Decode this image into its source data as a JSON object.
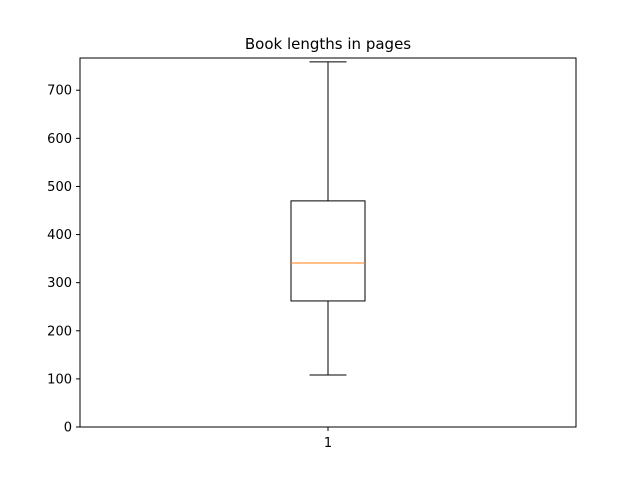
{
  "chart_data": {
    "type": "box",
    "title": "Book lengths in pages",
    "xlabel": "",
    "ylabel": "",
    "categories": [
      "1"
    ],
    "boxes": [
      {
        "label": "1",
        "whisker_low": 108,
        "q1": 262,
        "median": 341,
        "q3": 470,
        "whisker_high": 759
      }
    ],
    "ylim": [
      0,
      767
    ],
    "yticks": [
      0,
      100,
      200,
      300,
      400,
      500,
      600,
      700
    ],
    "grid": false,
    "colors": {
      "box": "#000000",
      "median": "#ff7f0e",
      "axes": "#000000"
    }
  }
}
